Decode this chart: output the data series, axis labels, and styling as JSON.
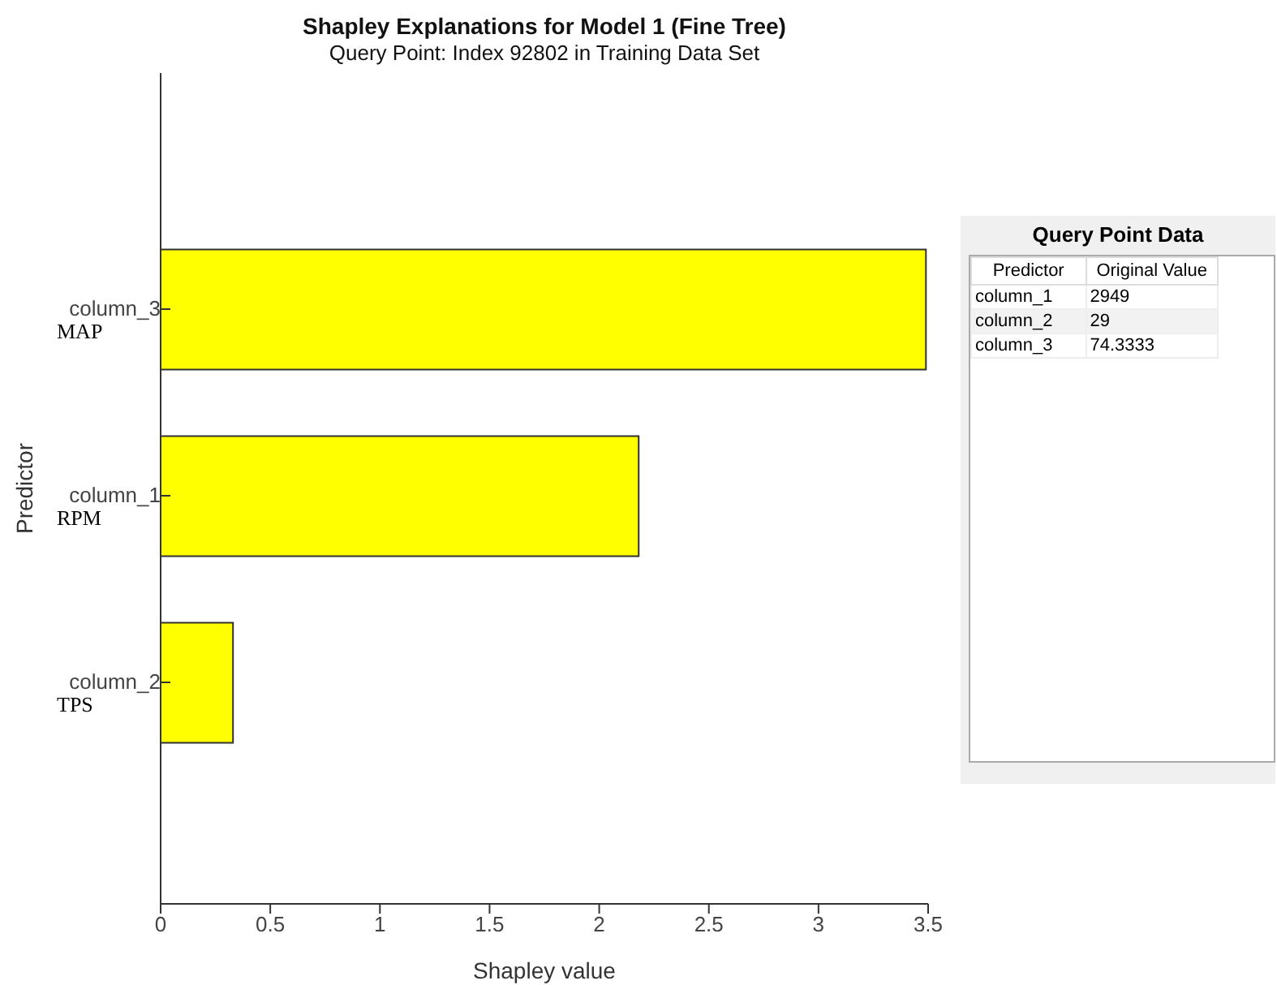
{
  "chart_data": [
    {
      "type": "bar",
      "orientation": "horizontal",
      "title": "Shapley Explanations for Model 1 (Fine Tree)",
      "subtitle": "Query Point: Index 92802 in Training Data Set",
      "xlabel": "Shapley value",
      "ylabel": "Predictor",
      "categories": [
        "column_3",
        "column_1",
        "column_2"
      ],
      "values": [
        3.49,
        2.18,
        0.33
      ],
      "color": "#ffff00",
      "xlim": [
        0,
        3.5
      ],
      "xticks": [
        0,
        0.5,
        1,
        1.5,
        2,
        2.5,
        3,
        3.5
      ],
      "annotations": [
        "MAP",
        "RPM",
        "TPS"
      ]
    },
    {
      "type": "other",
      "title": "Query Point Data",
      "categories": [
        "Predictor",
        "Original Value"
      ],
      "annotations": [
        "column_1",
        "2949",
        "column_2",
        "29",
        "column_3",
        "74.3333"
      ]
    }
  ]
}
